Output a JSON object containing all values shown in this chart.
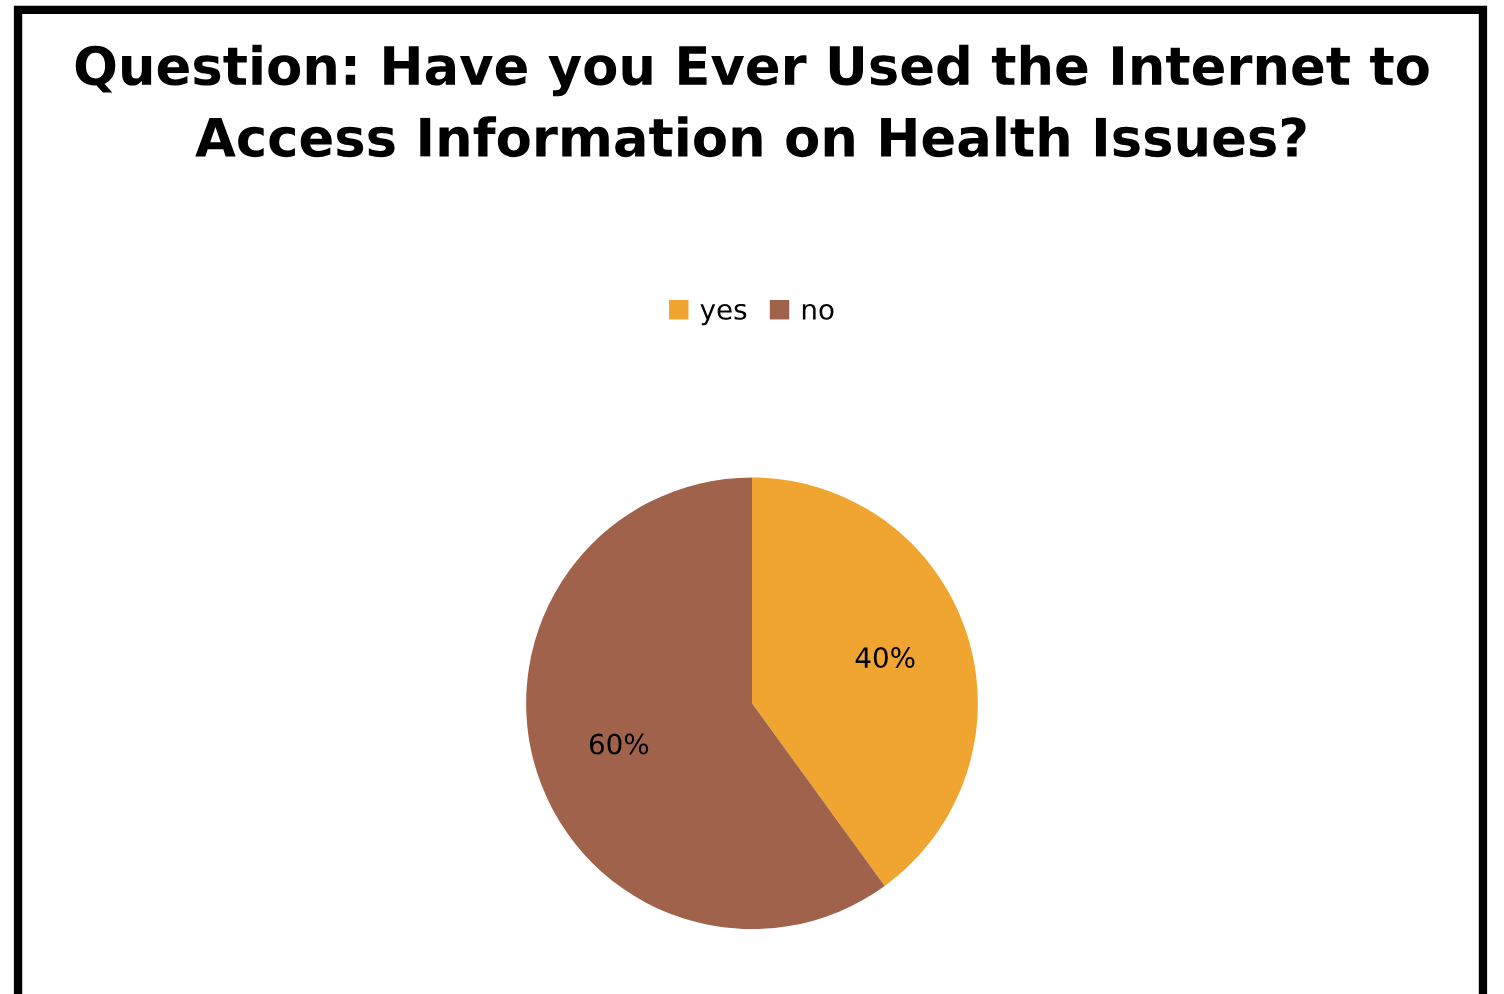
{
  "chart_data": {
    "type": "pie",
    "title": "Question: Have you Ever Used the Internet to\nAccess Information on Health Issues?",
    "categories": [
      "yes",
      "no"
    ],
    "values": [
      40,
      60
    ],
    "colors": [
      "#f0a530",
      "#a0624b"
    ],
    "value_labels": [
      "40%",
      "60%"
    ],
    "legend": "top"
  }
}
